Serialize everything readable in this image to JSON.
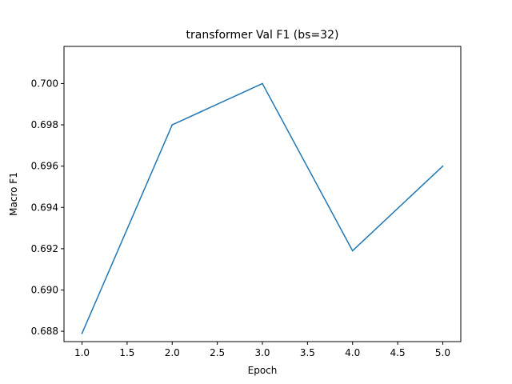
{
  "chart_data": {
    "type": "line",
    "title": "transformer Val F1 (bs=32)",
    "xlabel": "Epoch",
    "ylabel": "Macro F1",
    "xlim": [
      0.8,
      5.2
    ],
    "ylim": [
      0.6875,
      0.7018
    ],
    "x_ticks": [
      1.0,
      1.5,
      2.0,
      2.5,
      3.0,
      3.5,
      4.0,
      4.5,
      5.0
    ],
    "x_tick_labels": [
      "1.0",
      "1.5",
      "2.0",
      "2.5",
      "3.0",
      "3.5",
      "4.0",
      "4.5",
      "5.0"
    ],
    "y_ticks": [
      0.688,
      0.69,
      0.692,
      0.694,
      0.696,
      0.698,
      0.7
    ],
    "y_tick_labels": [
      "0.688",
      "0.690",
      "0.692",
      "0.694",
      "0.696",
      "0.698",
      "0.700"
    ],
    "grid": false,
    "series": [
      {
        "color": "#1f77b4",
        "x": [
          1.0,
          2.0,
          3.0,
          4.0,
          5.0
        ],
        "values": [
          0.6879,
          0.698,
          0.7,
          0.6919,
          0.696
        ]
      }
    ]
  }
}
